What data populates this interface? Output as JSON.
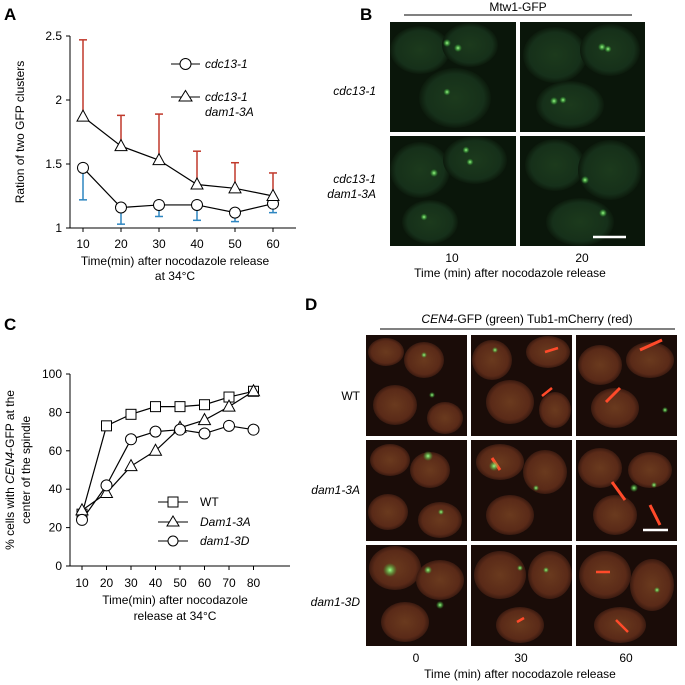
{
  "panel_letters": {
    "a": "A",
    "b": "B",
    "c": "C",
    "d": "D"
  },
  "panel_a": {
    "ylabel": "Ration of two GFP clusters",
    "xlabel_line1": "Time(min)  after nocodazole release",
    "xlabel_line2": "at 34°C",
    "legend": [
      "cdc13-1",
      "cdc13-1",
      "dam1-3A"
    ]
  },
  "panel_b": {
    "header": "Mtw1-GFP",
    "row_labels": [
      "cdc13-1",
      "cdc13-1",
      "dam1-3A"
    ],
    "col_labels": [
      "10",
      "20"
    ],
    "xlabel": "Time (min)  after  nocodazole release"
  },
  "panel_c": {
    "ylabel_pre": "% cells with ",
    "ylabel_ital": "CEN4",
    "ylabel_post": "-GFP  at the",
    "ylabel_line2": "center of the spindle",
    "xlabel_line1": "Time(min)  after nocodazole",
    "xlabel_line2": "release at 34°C"
  },
  "panel_d": {
    "header_ital": "CEN4",
    "header_rest": "-GFP  (green)  Tub1-mCherry  (red)",
    "row_labels": [
      "WT",
      "dam1-3A",
      "dam1-3D"
    ],
    "col_labels": [
      "0",
      "30",
      "60"
    ],
    "xlabel": "Time  (min)  after  nocodazole  release"
  },
  "colors": {
    "error_red": "#c0392b",
    "error_blue": "#2e86c1",
    "micro_bg": "#0a140a",
    "micro_bg_red": "#2a120c"
  },
  "chart_data": [
    {
      "type": "line",
      "x": [
        10,
        20,
        30,
        40,
        50,
        60
      ],
      "ylim": [
        1,
        2.5
      ],
      "yticks": [
        "1",
        "1.5",
        "2",
        "2.5"
      ],
      "xticks": [
        "10",
        "20",
        "30",
        "40",
        "50",
        "60"
      ],
      "series": [
        {
          "name": "cdc13-1",
          "marker": "circle",
          "values": [
            1.47,
            1.16,
            1.18,
            1.18,
            1.12,
            1.19
          ],
          "err": [
            0.25,
            0.13,
            0.09,
            0.12,
            0.07,
            0.07
          ],
          "err_color": "#2e86c1"
        },
        {
          "name": "cdc13-1 dam1-3A",
          "marker": "triangle",
          "values": [
            1.87,
            1.64,
            1.53,
            1.34,
            1.31,
            1.25
          ],
          "err": [
            0.6,
            0.24,
            0.36,
            0.26,
            0.2,
            0.18
          ],
          "err_color": "#c0392b"
        }
      ]
    },
    {
      "type": "line",
      "x": [
        10,
        20,
        30,
        40,
        50,
        60,
        70,
        80
      ],
      "ylim": [
        0,
        100
      ],
      "yticks": [
        "0",
        "20",
        "40",
        "60",
        "80",
        "100"
      ],
      "xticks": [
        "10",
        "20",
        "30",
        "40",
        "50",
        "60",
        "70",
        "80"
      ],
      "series": [
        {
          "name": "WT",
          "marker": "square",
          "values": [
            27,
            73,
            79,
            83,
            83,
            84,
            88,
            91
          ]
        },
        {
          "name": "Dam1-3A",
          "marker": "triangle",
          "values": [
            29,
            38,
            52,
            60,
            72,
            76,
            83,
            91
          ]
        },
        {
          "name": "dam1-3D",
          "marker": "circle",
          "values": [
            24,
            42,
            66,
            70,
            71,
            69,
            73,
            71
          ]
        }
      ]
    }
  ]
}
